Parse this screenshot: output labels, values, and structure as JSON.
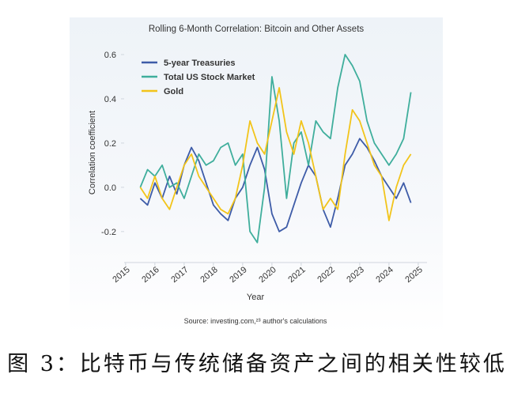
{
  "chart_data": {
    "type": "line",
    "title": "Rolling 6-Month Correlation: Bitcoin and Other Assets",
    "x_label": "Year",
    "y_label": "Correlation coefficient",
    "source": "Source: investing.com,²³ author's calculations",
    "x": [
      2015.5,
      2015.75,
      2016,
      2016.25,
      2016.5,
      2016.75,
      2017,
      2017.25,
      2017.5,
      2017.75,
      2018,
      2018.25,
      2018.5,
      2018.75,
      2019,
      2019.25,
      2019.5,
      2019.75,
      2020,
      2020.25,
      2020.5,
      2020.75,
      2021,
      2021.25,
      2021.5,
      2021.75,
      2022,
      2022.25,
      2022.5,
      2022.75,
      2023,
      2023.25,
      2023.5,
      2023.75,
      2024,
      2024.25,
      2024.5,
      2024.75
    ],
    "series": [
      {
        "name": "5-year Treasuries",
        "color": "#3e5ca8",
        "values": [
          -0.05,
          -0.08,
          0.02,
          -0.05,
          0.05,
          -0.03,
          0.1,
          0.18,
          0.12,
          0.02,
          -0.08,
          -0.12,
          -0.15,
          -0.05,
          0.0,
          0.1,
          0.18,
          0.08,
          -0.12,
          -0.2,
          -0.18,
          -0.08,
          0.02,
          0.1,
          0.05,
          -0.1,
          -0.18,
          -0.05,
          0.1,
          0.15,
          0.22,
          0.18,
          0.12,
          0.05,
          0.0,
          -0.05,
          0.02,
          -0.07
        ]
      },
      {
        "name": "Total US Stock Market",
        "color": "#3fae9c",
        "values": [
          0.0,
          0.08,
          0.05,
          0.1,
          0.0,
          0.02,
          -0.05,
          0.05,
          0.15,
          0.1,
          0.12,
          0.18,
          0.2,
          0.1,
          0.15,
          -0.2,
          -0.25,
          0.0,
          0.5,
          0.3,
          -0.05,
          0.2,
          0.25,
          0.1,
          0.3,
          0.25,
          0.22,
          0.45,
          0.6,
          0.55,
          0.48,
          0.3,
          0.2,
          0.15,
          0.1,
          0.15,
          0.22,
          0.43
        ]
      },
      {
        "name": "Gold",
        "color": "#f2c41a",
        "values": [
          0.0,
          -0.05,
          0.05,
          -0.05,
          -0.1,
          0.0,
          0.1,
          0.15,
          0.05,
          0.0,
          -0.05,
          -0.1,
          -0.12,
          -0.05,
          0.1,
          0.3,
          0.2,
          0.15,
          0.3,
          0.45,
          0.25,
          0.15,
          0.3,
          0.2,
          0.05,
          -0.1,
          -0.05,
          -0.1,
          0.15,
          0.35,
          0.3,
          0.2,
          0.1,
          0.05,
          -0.15,
          0.0,
          0.1,
          0.15
        ]
      }
    ],
    "xlim": [
      2014.95,
      2025.3
    ],
    "ylim": [
      -0.34,
      0.65
    ],
    "xticks": [
      2015,
      2016,
      2017,
      2018,
      2019,
      2020,
      2021,
      2022,
      2023,
      2024,
      2025
    ],
    "yticks": [
      -0.2,
      {
        "value": 0,
        "label": "0.0"
      },
      0.2,
      0.4,
      0.6
    ],
    "grid": false,
    "legend": "upper-left"
  },
  "caption": "图 3：比特币与传统储备资产之间的相关性较低"
}
